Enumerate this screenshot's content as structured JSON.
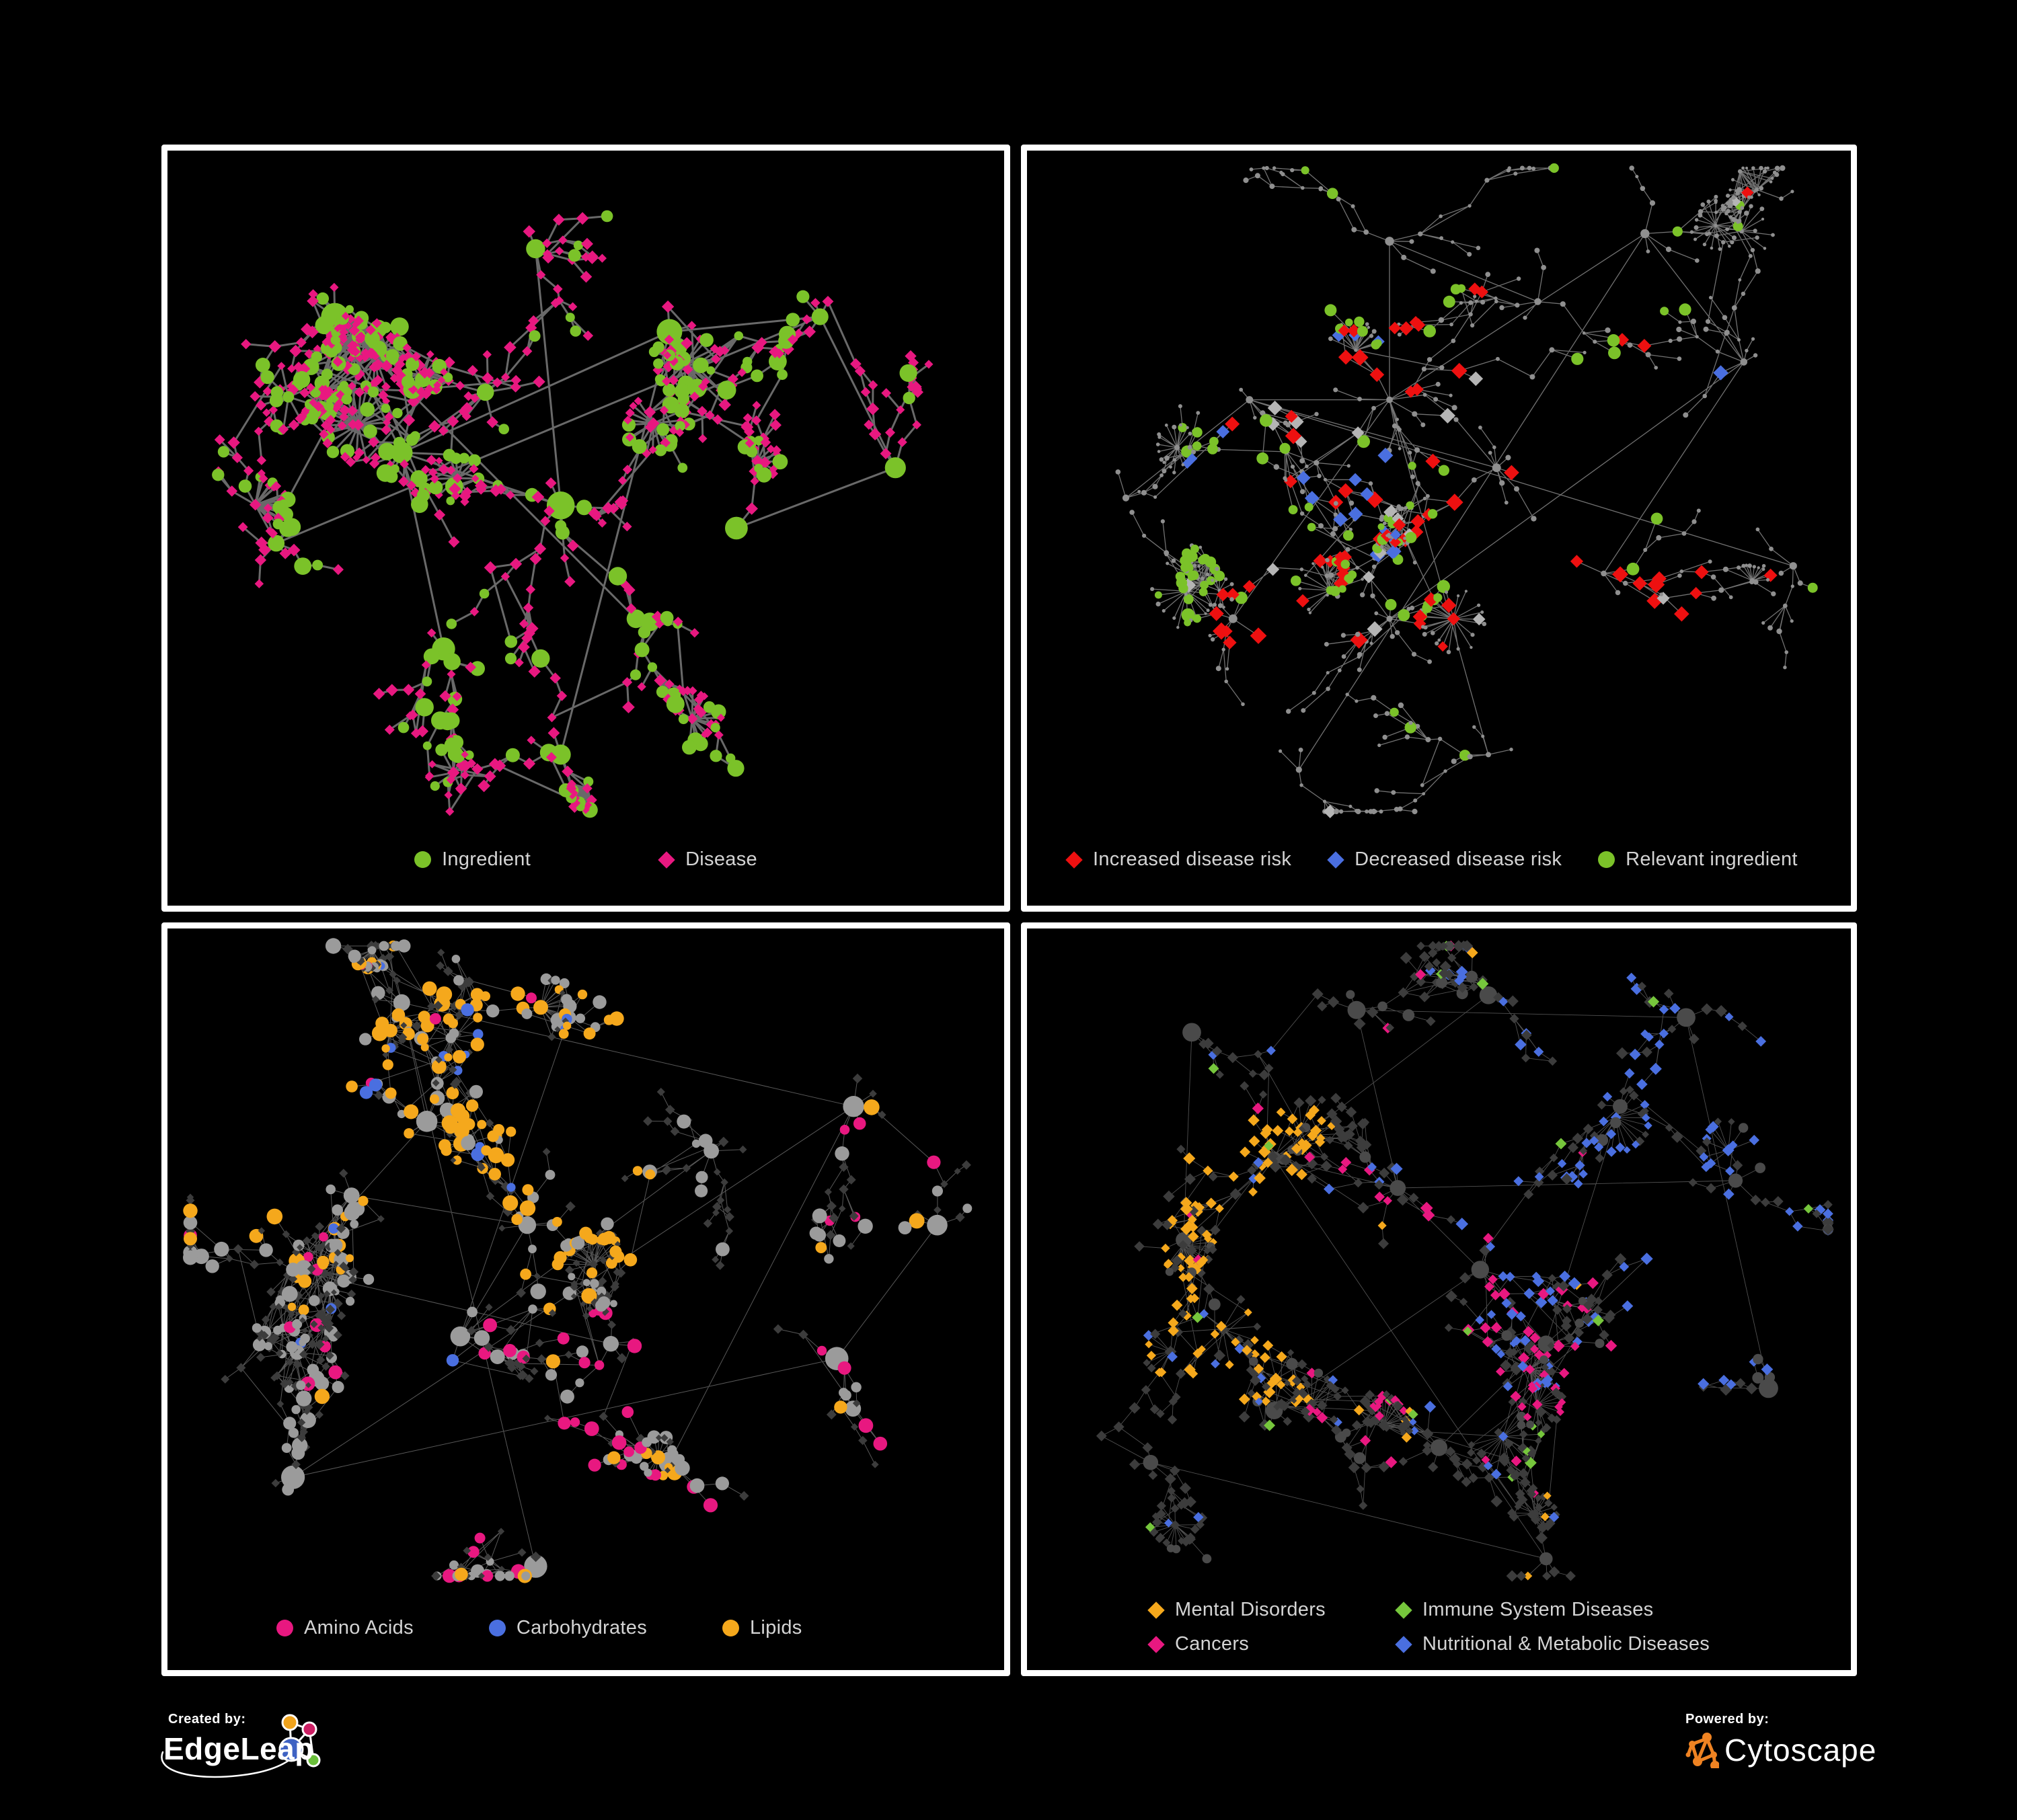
{
  "colors": {
    "background": "#000000",
    "panel_border": "#ffffff",
    "legend_text": "#d4d4d4",
    "green": "#7bc229",
    "magenta": "#e81880",
    "red": "#ee1010",
    "blue": "#4a6fe0",
    "orange": "#f5a81c",
    "silver": "#b5b5b5",
    "dim_diamond": "#3c3c3c",
    "gray_circle": "#9b9b9b",
    "cytoscape_orange": "#ef8322"
  },
  "footer": {
    "created_by_label": "Created by:",
    "created_by_brand": "EdgeLeap",
    "powered_by_label": "Powered by:",
    "powered_by_brand": "Cytoscape"
  },
  "chart_data": [
    {
      "id": "ingredient-disease-network",
      "type": "network",
      "legend": [
        {
          "label": "Ingredient",
          "shape": "circle",
          "color": "#7bc229"
        },
        {
          "label": "Disease",
          "shape": "diamond",
          "color": "#e81880"
        }
      ],
      "edge": {
        "color": "#6f6f6f",
        "width": 3,
        "opacity": 0.95
      },
      "gen": {
        "seed": 101,
        "nodes": 500,
        "bursts": 16,
        "web": 170,
        "hubMix": 0,
        "clusters": [
          {
            "x": 0.38,
            "y": 0.32,
            "spread": 34,
            "frac": 0.15
          },
          {
            "x": 0.28,
            "y": 0.4,
            "spread": 34,
            "frac": 0.13
          },
          {
            "x": 0.47,
            "y": 0.47,
            "spread": 32,
            "frac": 0.12
          },
          {
            "x": 0.2,
            "y": 0.22,
            "spread": 30,
            "frac": 0.07
          },
          {
            "x": 0.6,
            "y": 0.24,
            "spread": 30,
            "frac": 0.07
          },
          {
            "x": 0.78,
            "y": 0.22,
            "spread": 30,
            "frac": 0.07
          },
          {
            "x": 0.87,
            "y": 0.42,
            "spread": 28,
            "frac": 0.05
          },
          {
            "x": 0.56,
            "y": 0.62,
            "spread": 30,
            "frac": 0.08
          },
          {
            "x": 0.33,
            "y": 0.66,
            "spread": 30,
            "frac": 0.08
          },
          {
            "x": 0.13,
            "y": 0.52,
            "spread": 28,
            "frac": 0.05
          },
          {
            "x": 0.44,
            "y": 0.13,
            "spread": 28,
            "frac": 0.05
          },
          {
            "x": 0.68,
            "y": 0.5,
            "spread": 28,
            "frac": 0.04
          },
          {
            "x": 0.47,
            "y": 0.8,
            "spread": 26,
            "frac": 0.04
          }
        ],
        "mix": [
          {
            "shape": "circle",
            "color": "#7bc229",
            "w": 0.3,
            "s": [
              6.5,
              14
            ],
            "hubScale": 1.5
          },
          {
            "shape": "diamond",
            "color": "#e81880",
            "w": 0.7,
            "s": [
              6.5,
              9.5
            ]
          }
        ]
      }
    },
    {
      "id": "disease-risk-network",
      "type": "network",
      "legend": [
        {
          "label": "Increased disease risk",
          "shape": "diamond",
          "color": "#ee1010"
        },
        {
          "label": "Decreased disease risk",
          "shape": "diamond",
          "color": "#4a6fe0"
        },
        {
          "label": "Relevant ingredient",
          "shape": "circle",
          "color": "#7bc229"
        }
      ],
      "edge": {
        "color": "#8d8d8d",
        "width": 1.3,
        "opacity": 0.8
      },
      "gen": {
        "seed": 202,
        "nodes": 470,
        "bursts": 18,
        "web": 60,
        "hubMix": 0,
        "clusters": [
          {
            "x": 0.44,
            "y": 0.33,
            "spread": 40,
            "frac": 0.13
          },
          {
            "x": 0.27,
            "y": 0.33,
            "spread": 38,
            "frac": 0.11
          },
          {
            "x": 0.44,
            "y": 0.12,
            "spread": 36,
            "frac": 0.08
          },
          {
            "x": 0.62,
            "y": 0.2,
            "spread": 36,
            "frac": 0.08
          },
          {
            "x": 0.75,
            "y": 0.11,
            "spread": 34,
            "frac": 0.06
          },
          {
            "x": 0.87,
            "y": 0.28,
            "spread": 34,
            "frac": 0.06
          },
          {
            "x": 0.57,
            "y": 0.42,
            "spread": 36,
            "frac": 0.08
          },
          {
            "x": 0.7,
            "y": 0.56,
            "spread": 34,
            "frac": 0.07
          },
          {
            "x": 0.44,
            "y": 0.62,
            "spread": 36,
            "frac": 0.08
          },
          {
            "x": 0.25,
            "y": 0.62,
            "spread": 34,
            "frac": 0.07
          },
          {
            "x": 0.12,
            "y": 0.46,
            "spread": 32,
            "frac": 0.05
          },
          {
            "x": 0.56,
            "y": 0.8,
            "spread": 32,
            "frac": 0.06
          },
          {
            "x": 0.33,
            "y": 0.82,
            "spread": 30,
            "frac": 0.04
          },
          {
            "x": 0.93,
            "y": 0.55,
            "spread": 28,
            "frac": 0.03
          }
        ],
        "mix": [
          {
            "shape": "circle",
            "color": "#8f8f8f",
            "w": 0.76,
            "s": [
              2.4,
              4.2
            ],
            "hubScale": 1.6
          },
          {
            "shape": "circle",
            "color": "#7bc229",
            "w": 0.09,
            "s": [
              6,
              10
            ],
            "region": [
              0.18,
              0.18,
              0.78,
              0.62
            ],
            "boost": 3,
            "out": 0.25
          },
          {
            "shape": "diamond",
            "color": "#ee1010",
            "w": 0.08,
            "s": [
              9,
              13
            ],
            "region": [
              0.22,
              0.18,
              0.82,
              0.66
            ],
            "boost": 4,
            "out": 0.12
          },
          {
            "shape": "diamond",
            "color": "#4a6fe0",
            "w": 0.04,
            "s": [
              9,
              12
            ],
            "region": [
              0.18,
              0.24,
              0.46,
              0.54
            ],
            "boost": 4,
            "out": 0.12
          },
          {
            "shape": "diamond",
            "color": "#b5b5b5",
            "w": 0.03,
            "s": [
              9,
              12
            ],
            "region": [
              0.22,
              0.28,
              0.72,
              0.58
            ],
            "boost": 3,
            "out": 0.2
          }
        ]
      }
    },
    {
      "id": "macronutrient-network",
      "type": "network",
      "legend": [
        {
          "label": "Amino Acids",
          "shape": "circle",
          "color": "#e81880"
        },
        {
          "label": "Carbohydrates",
          "shape": "circle",
          "color": "#4a6fe0"
        },
        {
          "label": "Lipids",
          "shape": "circle",
          "color": "#f5a81c"
        }
      ],
      "edge": {
        "color": "#b0b0b0",
        "width": 1,
        "opacity": 0.5
      },
      "gen": {
        "seed": 303,
        "nodes": 540,
        "bursts": 14,
        "web": 320,
        "hubMix": 1,
        "clusters": [
          {
            "x": 0.22,
            "y": 0.36,
            "spread": 30,
            "frac": 0.17
          },
          {
            "x": 0.15,
            "y": 0.46,
            "spread": 28,
            "frac": 0.09
          },
          {
            "x": 0.31,
            "y": 0.26,
            "spread": 30,
            "frac": 0.1
          },
          {
            "x": 0.43,
            "y": 0.4,
            "spread": 32,
            "frac": 0.1
          },
          {
            "x": 0.35,
            "y": 0.55,
            "spread": 30,
            "frac": 0.07
          },
          {
            "x": 0.53,
            "y": 0.56,
            "spread": 30,
            "frac": 0.06
          },
          {
            "x": 0.28,
            "y": 0.1,
            "spread": 30,
            "frac": 0.06
          },
          {
            "x": 0.48,
            "y": 0.12,
            "spread": 30,
            "frac": 0.05
          },
          {
            "x": 0.65,
            "y": 0.3,
            "spread": 32,
            "frac": 0.06
          },
          {
            "x": 0.82,
            "y": 0.24,
            "spread": 30,
            "frac": 0.05
          },
          {
            "x": 0.6,
            "y": 0.72,
            "spread": 30,
            "frac": 0.06
          },
          {
            "x": 0.44,
            "y": 0.86,
            "spread": 28,
            "frac": 0.04
          },
          {
            "x": 0.15,
            "y": 0.74,
            "spread": 28,
            "frac": 0.04
          },
          {
            "x": 0.8,
            "y": 0.58,
            "spread": 28,
            "frac": 0.03
          },
          {
            "x": 0.92,
            "y": 0.4,
            "spread": 24,
            "frac": 0.02
          }
        ],
        "mix": [
          {
            "shape": "diamond",
            "color": "#3c3c3c",
            "w": 0.5,
            "s": [
              5,
              8
            ]
          },
          {
            "shape": "circle",
            "color": "#9b9b9b",
            "w": 0.25,
            "s": [
              6,
              12
            ],
            "hubScale": 1.5
          },
          {
            "shape": "circle",
            "color": "#f5a81c",
            "w": 0.13,
            "s": [
              7,
              12
            ],
            "region": [
              0.18,
              0.08,
              0.58,
              0.46
            ],
            "boost": 3.5,
            "out": 0.3
          },
          {
            "shape": "circle",
            "color": "#e81880",
            "w": 0.08,
            "s": [
              7,
              11
            ],
            "region": [
              0.28,
              0.5,
              0.95,
              0.95
            ],
            "boost": 2.5,
            "out": 0.4
          },
          {
            "shape": "circle",
            "color": "#4a6fe0",
            "w": 0.04,
            "s": [
              6.5,
              10
            ],
            "region": [
              0.2,
              0.08,
              0.5,
              0.35
            ],
            "boost": 3,
            "out": 0.3
          }
        ]
      }
    },
    {
      "id": "disease-category-network",
      "type": "network",
      "legend": [
        {
          "label": "Mental Disorders",
          "shape": "diamond",
          "color": "#f5a81c"
        },
        {
          "label": "Immune System Diseases",
          "shape": "diamond",
          "color": "#76c63c"
        },
        {
          "label": "Cancers",
          "shape": "diamond",
          "color": "#e81880"
        },
        {
          "label": "Nutritional & Metabolic Diseases",
          "shape": "diamond",
          "color": "#4a6fe0"
        }
      ],
      "edge": {
        "color": "#a0a0a0",
        "width": 0.9,
        "opacity": 0.5
      },
      "gen": {
        "seed": 404,
        "nodes": 600,
        "bursts": 14,
        "web": 220,
        "hubMix": 1,
        "clusters": [
          {
            "x": 0.19,
            "y": 0.42,
            "spread": 30,
            "frac": 0.13
          },
          {
            "x": 0.3,
            "y": 0.31,
            "spread": 30,
            "frac": 0.1
          },
          {
            "x": 0.45,
            "y": 0.35,
            "spread": 30,
            "frac": 0.12
          },
          {
            "x": 0.55,
            "y": 0.46,
            "spread": 30,
            "frac": 0.09
          },
          {
            "x": 0.63,
            "y": 0.56,
            "spread": 28,
            "frac": 0.07
          },
          {
            "x": 0.4,
            "y": 0.11,
            "spread": 30,
            "frac": 0.06
          },
          {
            "x": 0.56,
            "y": 0.09,
            "spread": 28,
            "frac": 0.05
          },
          {
            "x": 0.72,
            "y": 0.24,
            "spread": 30,
            "frac": 0.06
          },
          {
            "x": 0.86,
            "y": 0.34,
            "spread": 28,
            "frac": 0.05
          },
          {
            "x": 0.8,
            "y": 0.12,
            "spread": 26,
            "frac": 0.04
          },
          {
            "x": 0.5,
            "y": 0.7,
            "spread": 28,
            "frac": 0.06
          },
          {
            "x": 0.63,
            "y": 0.85,
            "spread": 26,
            "frac": 0.05
          },
          {
            "x": 0.3,
            "y": 0.65,
            "spread": 28,
            "frac": 0.05
          },
          {
            "x": 0.15,
            "y": 0.72,
            "spread": 26,
            "frac": 0.03
          },
          {
            "x": 0.9,
            "y": 0.62,
            "spread": 24,
            "frac": 0.02
          },
          {
            "x": 0.2,
            "y": 0.14,
            "spread": 26,
            "frac": 0.02
          }
        ],
        "mix": [
          {
            "shape": "diamond",
            "color": "#3c3c3c",
            "w": 0.5,
            "s": [
              6,
              9
            ]
          },
          {
            "shape": "circle",
            "color": "#4a4a4a",
            "w": 0.06,
            "s": [
              6,
              9
            ],
            "hubScale": 1.6
          },
          {
            "shape": "diamond",
            "color": "#f5a81c",
            "w": 0.15,
            "s": [
              6.5,
              9.5
            ],
            "region": [
              0.04,
              0.24,
              0.36,
              0.64
            ],
            "boost": 5,
            "out": 0.12
          },
          {
            "shape": "diamond",
            "color": "#e81880",
            "w": 0.12,
            "s": [
              6.5,
              9.5
            ],
            "region": [
              0.34,
              0.3,
              0.72,
              0.66
            ],
            "boost": 4,
            "out": 0.18
          },
          {
            "shape": "diamond",
            "color": "#4a6fe0",
            "w": 0.14,
            "s": [
              6.5,
              9.5
            ],
            "region": [
              0.52,
              0.04,
              0.98,
              0.62
            ],
            "boost": 3.5,
            "out": 0.3
          },
          {
            "shape": "diamond",
            "color": "#76c63c",
            "w": 0.03,
            "s": [
              6.5,
              9
            ]
          }
        ]
      }
    }
  ]
}
